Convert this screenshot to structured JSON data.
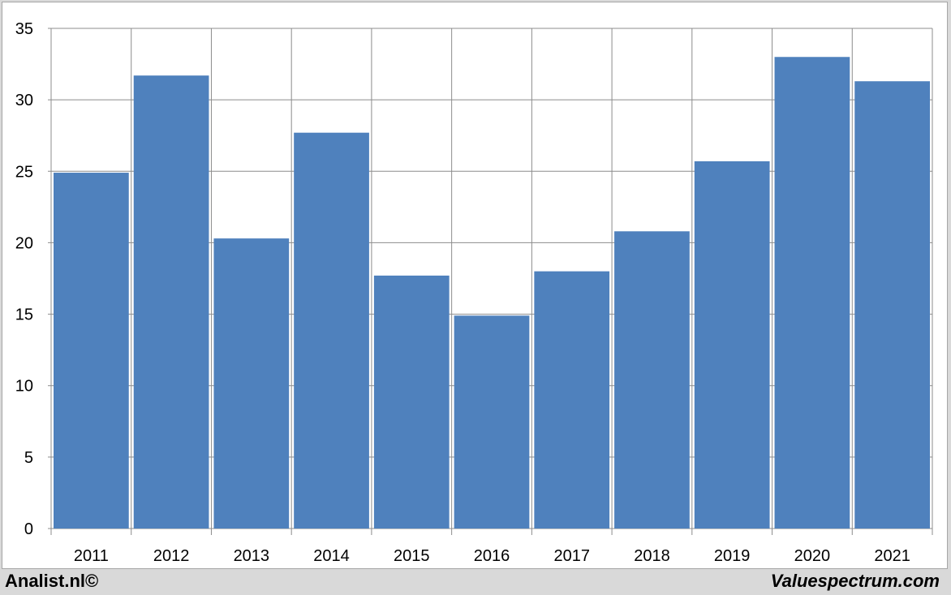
{
  "footer": {
    "left": "Analist.nl©",
    "right": "Valuespectrum.com"
  },
  "colors": {
    "bar": "#4f81bd",
    "grid": "#8c8c8c",
    "background": "#ffffff"
  },
  "chart_data": {
    "type": "bar",
    "categories": [
      "2011",
      "2012",
      "2013",
      "2014",
      "2015",
      "2016",
      "2017",
      "2018",
      "2019",
      "2020",
      "2021"
    ],
    "values": [
      24.9,
      31.7,
      20.3,
      27.7,
      17.7,
      14.9,
      18.0,
      20.8,
      25.7,
      33.0,
      31.3
    ],
    "yticks": [
      0,
      5,
      10,
      15,
      20,
      25,
      30,
      35
    ],
    "ylim": [
      0,
      35
    ],
    "grid": true,
    "title": "",
    "xlabel": "",
    "ylabel": ""
  }
}
